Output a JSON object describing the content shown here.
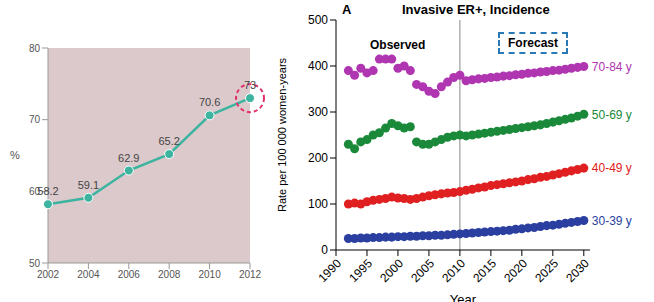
{
  "chart_data": [
    {
      "type": "line",
      "categories": [
        "2002",
        "2004",
        "2006",
        "2008",
        "2010",
        "2012"
      ],
      "values": [
        58.2,
        59.1,
        62.9,
        65.2,
        70.6,
        73
      ],
      "color": "#3cb4a0",
      "marker": "circle",
      "data_labels": true,
      "y_label": "%",
      "ylim": [
        50,
        80
      ],
      "yticks": [
        50,
        60,
        70,
        80
      ]
    },
    {
      "type": "scatter",
      "panel_label": "A",
      "title": "Invasive ER+, Incidence",
      "annotations": [
        "Observed",
        "Forecast"
      ],
      "x_label": "Year",
      "y_label": "Rate per 100 000 women-years",
      "forecast_start": 2010,
      "x": [
        1992,
        1993,
        1994,
        1995,
        1996,
        1997,
        1998,
        1999,
        2000,
        2001,
        2002,
        2003,
        2004,
        2005,
        2006,
        2007,
        2008,
        2009,
        2010,
        2011,
        2012,
        2013,
        2014,
        2015,
        2016,
        2017,
        2018,
        2019,
        2020,
        2021,
        2022,
        2023,
        2024,
        2025,
        2026,
        2027,
        2028,
        2029,
        2030
      ],
      "series": [
        {
          "name": "70-84 y",
          "color": "#b035b0",
          "values": [
            390,
            380,
            395,
            385,
            390,
            415,
            415,
            415,
            395,
            400,
            390,
            360,
            355,
            345,
            340,
            355,
            365,
            375,
            380,
            368,
            370,
            372,
            373,
            375,
            376,
            378,
            379,
            381,
            382,
            384,
            385,
            387,
            388,
            390,
            391,
            393,
            395,
            397,
            399
          ]
        },
        {
          "name": "50-69 y",
          "color": "#1a8a3a",
          "values": [
            230,
            220,
            235,
            240,
            250,
            255,
            265,
            275,
            270,
            265,
            268,
            235,
            230,
            230,
            235,
            240,
            245,
            248,
            250,
            248,
            250,
            252,
            254,
            256,
            258,
            260,
            262,
            264,
            266,
            268,
            270,
            272,
            275,
            278,
            281,
            284,
            287,
            291,
            295
          ]
        },
        {
          "name": "40-49 y",
          "color": "#e02020",
          "values": [
            100,
            102,
            100,
            105,
            108,
            110,
            112,
            115,
            113,
            112,
            110,
            112,
            115,
            118,
            120,
            122,
            124,
            125,
            127,
            130,
            132,
            135,
            137,
            140,
            142,
            144,
            146,
            148,
            150,
            153,
            155,
            158,
            160,
            163,
            166,
            169,
            172,
            175,
            178
          ]
        },
        {
          "name": "30-39 y",
          "color": "#2a3fa0",
          "values": [
            25,
            25,
            26,
            26,
            27,
            27,
            28,
            28,
            29,
            29,
            30,
            30,
            31,
            31,
            32,
            32,
            33,
            34,
            35,
            36,
            37,
            38,
            39,
            40,
            41,
            42,
            43,
            45,
            46,
            48,
            49,
            51,
            53,
            54,
            56,
            58,
            60,
            62,
            64
          ]
        }
      ],
      "xlim": [
        1990,
        2031
      ],
      "xticks": [
        1990,
        1995,
        2000,
        2005,
        2010,
        2015,
        2020,
        2025,
        2030
      ],
      "ylim": [
        0,
        500
      ],
      "yticks": [
        0,
        100,
        200,
        300,
        400,
        500
      ]
    }
  ]
}
